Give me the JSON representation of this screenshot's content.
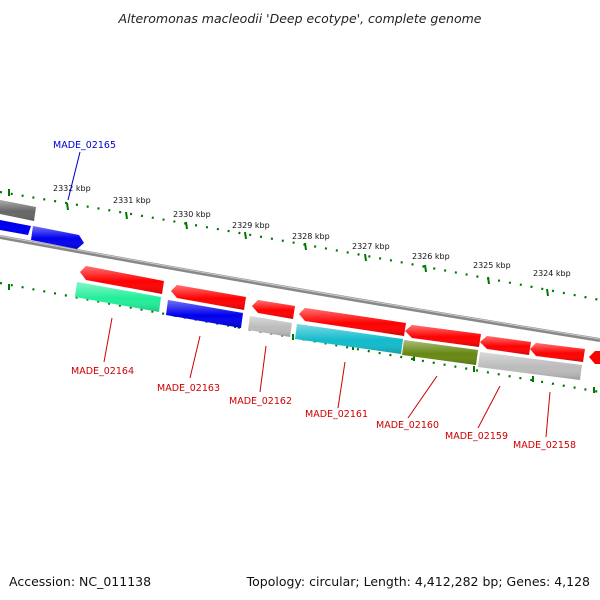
{
  "title": "Alteromonas macleodii 'Deep ecotype', complete genome",
  "footer": {
    "accession": "Accession: NC_011138",
    "summary": "Topology: circular; Length: 4,412,282 bp; Genes: 4,128"
  },
  "scale": {
    "unit": "kbp",
    "ticks": [
      "2332 kbp",
      "2331 kbp",
      "2330 kbp",
      "2329 kbp",
      "2328 kbp",
      "2327 kbp",
      "2326 kbp",
      "2325 kbp",
      "2324 kbp"
    ]
  },
  "colors": {
    "red": "#ff0000",
    "blue": "#0000ee",
    "grey": "#aaaaaa",
    "dark_grey": "#666666",
    "green_mint": "#22ee99",
    "cyan": "#11bbcc",
    "olive": "#668811",
    "backbone": "#888888",
    "tick_green": "#007700"
  },
  "genes": [
    {
      "label": "MADE_02165",
      "color_key": "blue"
    },
    {
      "label": "MADE_02164",
      "color_key": "red"
    },
    {
      "label": "MADE_02163",
      "color_key": "red"
    },
    {
      "label": "MADE_02162",
      "color_key": "red"
    },
    {
      "label": "MADE_02161",
      "color_key": "red"
    },
    {
      "label": "MADE_02160",
      "color_key": "red"
    },
    {
      "label": "MADE_02159",
      "color_key": "red"
    },
    {
      "label": "MADE_02158",
      "color_key": "red"
    }
  ]
}
